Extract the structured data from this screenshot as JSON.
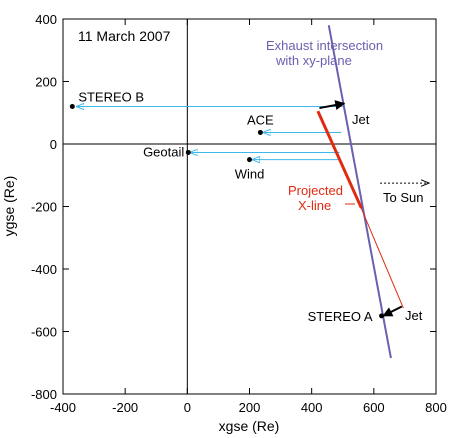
{
  "chart_data": {
    "type": "line",
    "title": "",
    "xlabel": "xgse (Re)",
    "ylabel": "ygse (Re)",
    "xlim": [
      -400,
      800
    ],
    "ylim": [
      -800,
      400
    ],
    "xticks": [
      -400,
      -200,
      0,
      200,
      400,
      600,
      800
    ],
    "yticks": [
      -800,
      -600,
      -400,
      -200,
      0,
      200,
      400
    ],
    "grid": false,
    "annotations": {
      "date": "11 March 2007",
      "exhaust_label_1": "Exhaust intersection",
      "exhaust_label_2": "with xy-plane",
      "xline_label_1": "Projected",
      "xline_label_2": "X-line",
      "sun_label": "To Sun",
      "jet_upper": "Jet",
      "jet_lower": "Jet"
    },
    "spacecraft": [
      {
        "name": "STEREO B",
        "x": -370,
        "y": 120
      },
      {
        "name": "ACE",
        "x": 235,
        "y": 37
      },
      {
        "name": "Geotail",
        "x": 3,
        "y": -27
      },
      {
        "name": "Wind",
        "x": 200,
        "y": -50
      },
      {
        "name": "STEREO A",
        "x": 625,
        "y": -550
      }
    ],
    "exhaust_line": {
      "x": [
        455,
        655
      ],
      "y": [
        380,
        -685
      ]
    },
    "projected_xline": [
      {
        "x": [
          420,
          560
        ],
        "y": [
          105,
          -205
        ]
      },
      {
        "x": [
          555,
          695
        ],
        "y": [
          -195,
          -525
        ]
      }
    ],
    "jets": [
      {
        "from": [
          425,
          115
        ],
        "to": [
          505,
          130
        ]
      },
      {
        "from": [
          690,
          -520
        ],
        "to": [
          630,
          -550
        ]
      }
    ],
    "sun_arrow": {
      "from": [
        620,
        -125
      ],
      "to": [
        775,
        -125
      ]
    },
    "propagation_arrows": [
      {
        "from": [
          500,
          120
        ],
        "to": [
          -355,
          120
        ]
      },
      {
        "from": [
          495,
          37
        ],
        "to": [
          245,
          37
        ]
      },
      {
        "from": [
          490,
          -27
        ],
        "to": [
          10,
          -27
        ]
      },
      {
        "from": [
          490,
          -50
        ],
        "to": [
          210,
          -50
        ]
      }
    ],
    "colors": {
      "exhaust": "#6a5fb0",
      "xline": "#e02a12",
      "propagation": "#3db8e8",
      "axis": "#000000"
    }
  }
}
